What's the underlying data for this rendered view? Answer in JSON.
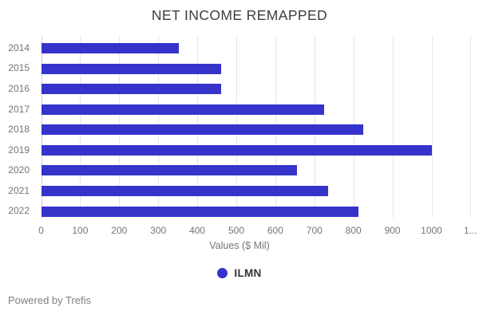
{
  "title": "NET INCOME REMAPPED",
  "chart_data": {
    "type": "bar",
    "orientation": "horizontal",
    "title": "NET INCOME REMAPPED",
    "categories": [
      "2014",
      "2015",
      "2016",
      "2017",
      "2018",
      "2019",
      "2020",
      "2021",
      "2022"
    ],
    "series": [
      {
        "name": "ILMN",
        "color": "#3633cb",
        "values": [
          353,
          462,
          462,
          725,
          825,
          1000,
          655,
          735,
          812
        ]
      }
    ],
    "xlabel": "Values ($ Mil)",
    "xlim": [
      0,
      1100
    ],
    "xticks": [
      0,
      100,
      200,
      300,
      400,
      500,
      600,
      700,
      800,
      900,
      1000,
      1100
    ],
    "xtick_labels": [
      "0",
      "100",
      "200",
      "300",
      "400",
      "500",
      "600",
      "700",
      "800",
      "900",
      "1000",
      "1..."
    ],
    "grid": true,
    "legend_position": "bottom"
  },
  "legend": {
    "items": [
      {
        "label": "ILMN",
        "color": "#3633cb"
      }
    ]
  },
  "footer": {
    "text": "Powered by Trefis"
  },
  "colors": {
    "bar": "#3633cb",
    "grid": "#e6e6e6",
    "axis_line": "#ccd0e2",
    "tick_text": "#757575",
    "title_text": "#3d3d3d",
    "legend_text": "#333333",
    "footer_text": "#808080",
    "background": "#ffffff"
  }
}
